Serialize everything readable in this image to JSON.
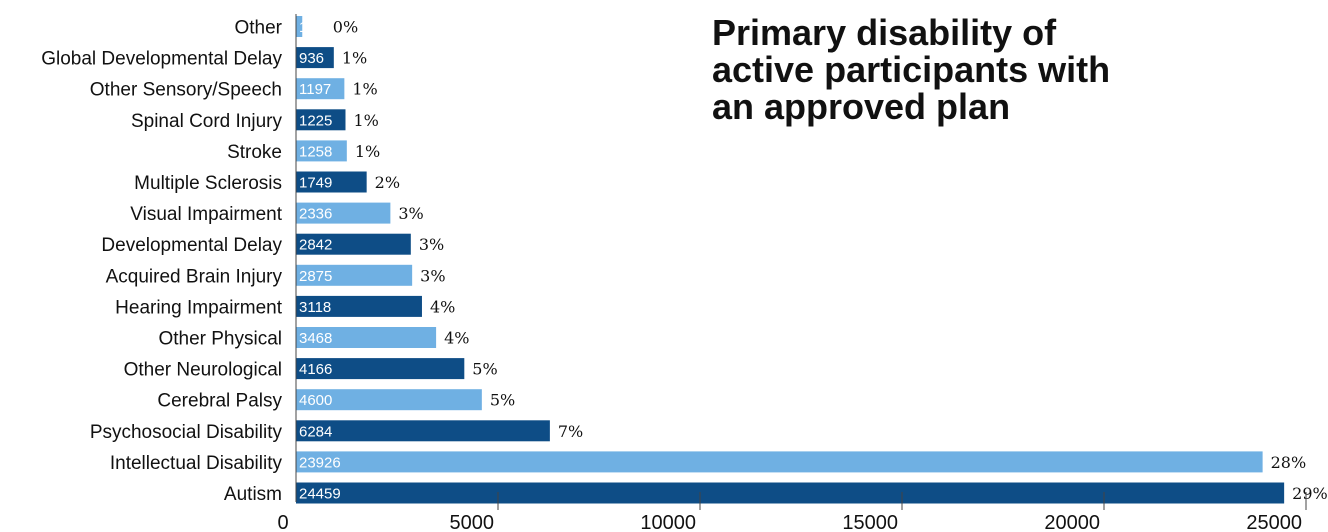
{
  "chart_data": {
    "type": "bar",
    "orientation": "horizontal",
    "title_lines": [
      "Primary disability of",
      "active participants with",
      "an approved plan"
    ],
    "categories": [
      "Other",
      "Global Developmental Delay",
      "Other Sensory/Speech",
      "Spinal Cord Injury",
      "Stroke",
      "Multiple Sclerosis",
      "Visual Impairment",
      "Developmental Delay",
      "Acquired Brain Injury",
      "Hearing Impairment",
      "Other Physical",
      "Other Neurological",
      "Cerebral Palsy",
      "Psychosocial Disability",
      "Intellectual Disability",
      "Autism"
    ],
    "values": [
      155,
      936,
      1197,
      1225,
      1258,
      1749,
      2336,
      2842,
      2875,
      3118,
      3468,
      4166,
      4600,
      6284,
      23926,
      24459
    ],
    "value_labels": [
      "155",
      "936",
      "1197",
      "1225",
      "1258",
      "1749",
      "2336",
      "2842",
      "2875",
      "3118",
      "3468",
      "4166",
      "4600",
      "6284",
      "23926",
      "24459"
    ],
    "percent_labels": [
      "0%",
      "1%",
      "1%",
      "1%",
      "1%",
      "2%",
      "3%",
      "3%",
      "3%",
      "4%",
      "4%",
      "5%",
      "5%",
      "7%",
      "28%",
      "29%"
    ],
    "xlim": [
      0,
      25000
    ],
    "xticks": [
      0,
      5000,
      10000,
      15000,
      20000,
      25000
    ],
    "xtick_labels": [
      "0",
      "5000",
      "10000",
      "15000",
      "20000",
      "25000"
    ],
    "grid": false,
    "legend": "none",
    "colors": {
      "bar_light": "#6fb0e3",
      "bar_dark": "#0e4d86",
      "bar_label_on_light": "#ffffff",
      "bar_label_on_dark": "#ffffff"
    }
  }
}
